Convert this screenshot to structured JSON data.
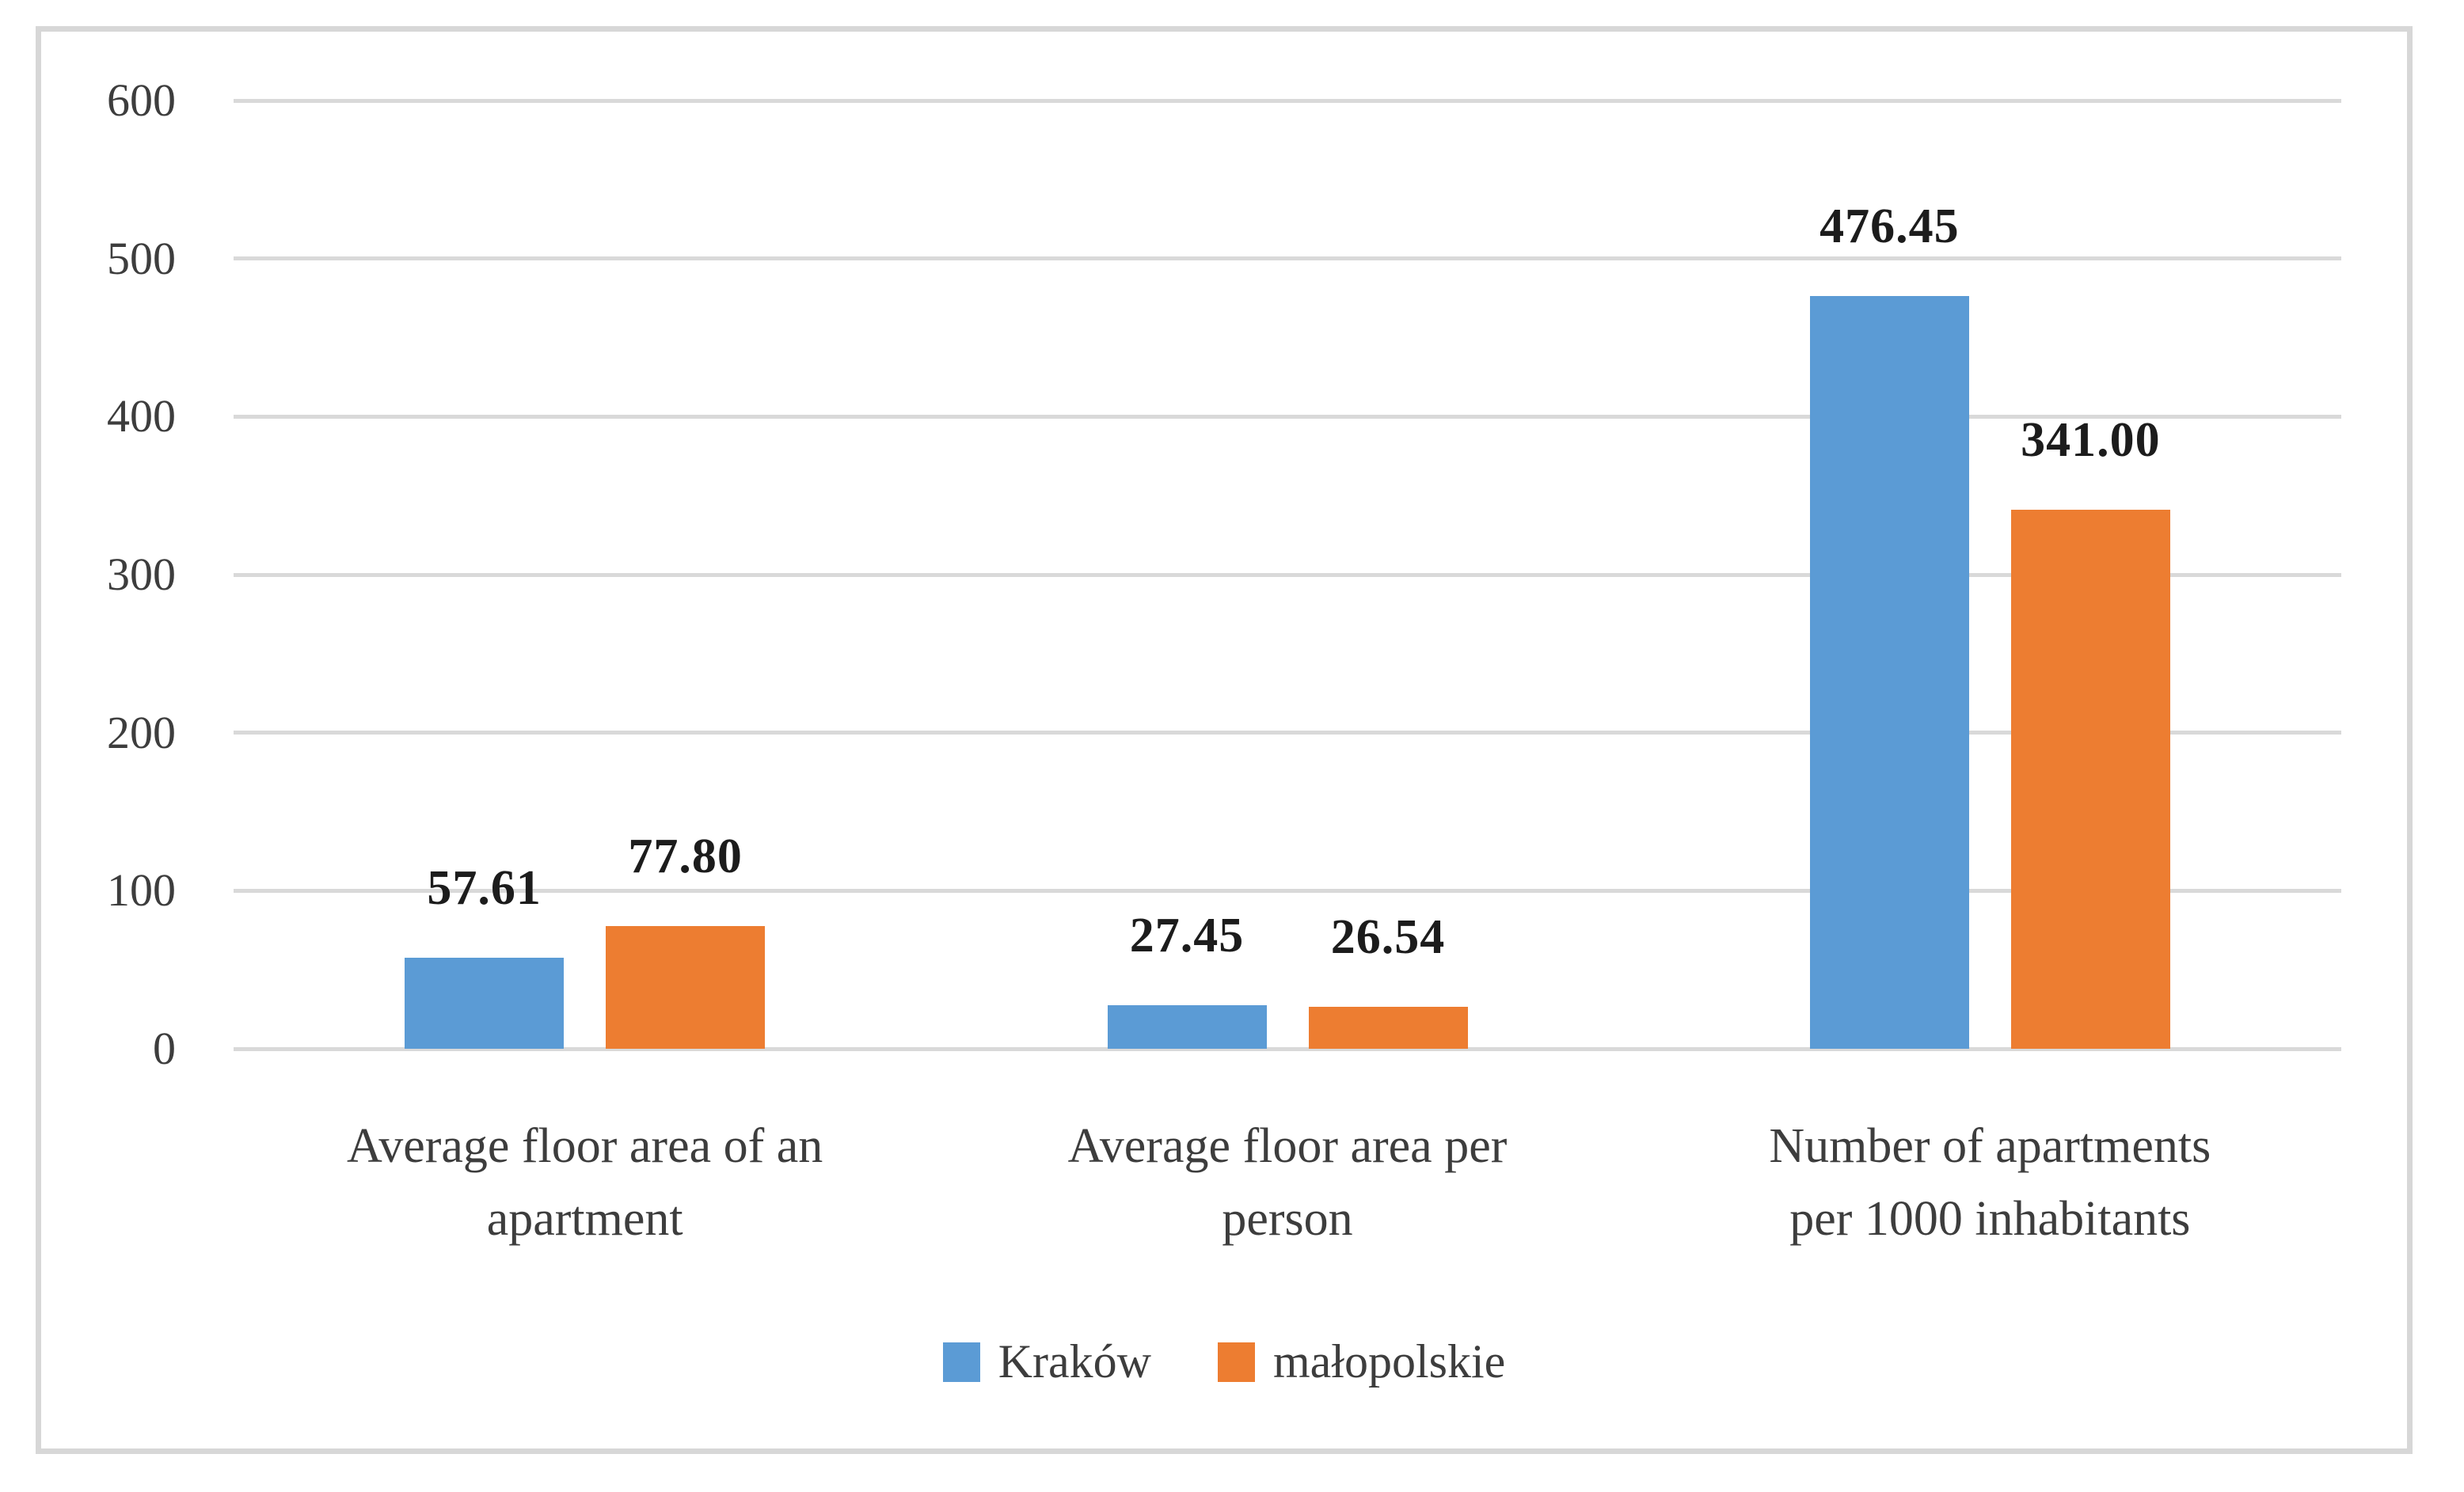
{
  "chart_data": {
    "type": "bar",
    "title": "",
    "xlabel": "",
    "ylabel": "",
    "categories": [
      "Average floor area of an apartment",
      "Average floor area per person",
      "Number of apartments per 1000 inhabitants"
    ],
    "categories_display": [
      "Average floor area of an\napartment",
      "Average floor area per\nperson",
      "Number of apartments\nper 1000 inhabitants"
    ],
    "series": [
      {
        "name": "Kraków",
        "color": "#5B9BD5",
        "values": [
          57.61,
          27.45,
          476.45
        ],
        "value_labels": [
          "57.61",
          "27.45",
          "476.45"
        ]
      },
      {
        "name": "małopolskie",
        "color": "#ED7D31",
        "values": [
          77.8,
          26.54,
          341.0
        ],
        "value_labels": [
          "77.80",
          "26.54",
          "341.00"
        ]
      }
    ],
    "ylim": [
      0,
      600
    ],
    "ytick_step": 100,
    "yticks": [
      "0",
      "100",
      "200",
      "300",
      "400",
      "500",
      "600"
    ],
    "grid": true,
    "legend_position": "bottom",
    "gridline_color": "#D9D9D9",
    "frame_border_color": "#D7D7D7",
    "axis_text_color": "#3D3D3D",
    "data_label_color": "#1C1C1C"
  }
}
